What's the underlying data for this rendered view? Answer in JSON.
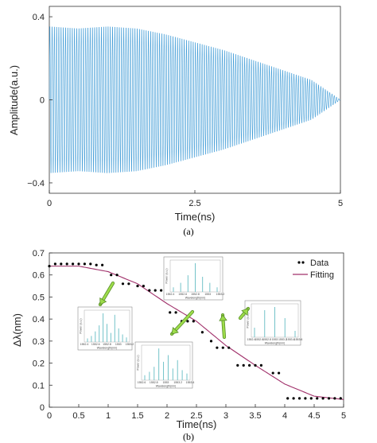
{
  "chart_data": [
    {
      "panel": "(a)",
      "type": "line",
      "title": "",
      "xlabel": "Time(ns)",
      "ylabel": "Amplitude(a.u.)",
      "xlim": [
        0,
        5
      ],
      "ylim": [
        -0.45,
        0.45
      ],
      "x_ticks": [
        "0",
        "2.5",
        "5"
      ],
      "y_ticks": [
        "-0.4",
        "0",
        "0.4"
      ],
      "grid": false,
      "line_color": "#3d9ad6",
      "series": [
        {
          "signal": "decaying oscillation",
          "cycles": 130,
          "envelope": {
            "x": [
              0,
              0.5,
              1.0,
              1.5,
              2.0,
              2.5,
              3.0,
              3.5,
              4.0,
              4.5,
              5.0
            ],
            "y": [
              0.37,
              0.36,
              0.37,
              0.36,
              0.33,
              0.29,
              0.25,
              0.2,
              0.15,
              0.1,
              0.0
            ]
          }
        }
      ]
    },
    {
      "panel": "(b)",
      "type": "scatter",
      "title": "",
      "xlabel": "Time(ns)",
      "ylabel": "Δλ(nm)",
      "xlim": [
        0,
        5
      ],
      "ylim": [
        0,
        0.7
      ],
      "x_ticks": [
        "0",
        "0.5",
        "1",
        "1.5",
        "2",
        "2.5",
        "3",
        "3.5",
        "4",
        "4.5",
        "5"
      ],
      "y_ticks": [
        "0",
        "0.1",
        "0.2",
        "0.3",
        "0.4",
        "0.5",
        "0.6",
        "0.7"
      ],
      "grid": false,
      "legend": {
        "placement": "top-right",
        "entries": [
          "Data",
          "Fitting"
        ]
      },
      "series": [
        {
          "name": "Data",
          "style": "dots",
          "color": "#000000",
          "x": [
            0.0,
            0.1,
            0.2,
            0.3,
            0.4,
            0.5,
            0.6,
            0.7,
            0.8,
            0.9,
            1.05,
            1.15,
            1.25,
            1.35,
            1.5,
            1.6,
            1.7,
            1.8,
            1.9,
            2.05,
            2.15,
            2.25,
            2.35,
            2.45,
            2.6,
            2.75,
            2.85,
            2.95,
            3.05,
            3.2,
            3.3,
            3.4,
            3.5,
            3.6,
            3.8,
            3.9,
            4.05,
            4.15,
            4.25,
            4.35,
            4.45,
            4.55,
            4.65,
            4.75,
            4.85,
            4.95
          ],
          "y": [
            0.64,
            0.65,
            0.65,
            0.65,
            0.65,
            0.65,
            0.65,
            0.65,
            0.645,
            0.645,
            0.6,
            0.6,
            0.56,
            0.56,
            0.55,
            0.55,
            0.53,
            0.53,
            0.53,
            0.43,
            0.43,
            0.39,
            0.39,
            0.39,
            0.34,
            0.3,
            0.27,
            0.27,
            0.27,
            0.19,
            0.19,
            0.19,
            0.19,
            0.19,
            0.155,
            0.155,
            0.04,
            0.04,
            0.04,
            0.04,
            0.04,
            0.04,
            0.04,
            0.04,
            0.04,
            0.04
          ]
        },
        {
          "name": "Fitting",
          "style": "line",
          "color": "#a0306a",
          "x": [
            0,
            0.5,
            1.0,
            1.5,
            2.0,
            2.5,
            3.0,
            3.5,
            4.0,
            4.5,
            5.0
          ],
          "y": [
            0.64,
            0.64,
            0.615,
            0.56,
            0.47,
            0.39,
            0.28,
            0.19,
            0.105,
            0.05,
            0.035
          ]
        }
      ],
      "insets": [
        {
          "xlabel": "Wavelength(nm)",
          "ylabel": "Power (a.u.)",
          "x_ticks": [
            "1552.4",
            "1552.6",
            "1552.8",
            "1553",
            "1553.2"
          ],
          "color": "#73c3c9",
          "peaks": [
            0.12,
            0.2,
            0.35,
            0.55,
            0.95,
            0.6,
            0.3,
            0.9,
            0.45,
            0.25,
            0.15
          ]
        },
        {
          "xlabel": "Wavelength(nm)",
          "ylabel": "Power (a.u.)",
          "x_ticks": [
            "1552.6",
            "1552.8",
            "1553",
            "1553.2",
            "1553.4"
          ],
          "color": "#73c3c9",
          "peaks": [
            0.15,
            0.25,
            0.4,
            0.95,
            0.55,
            0.75,
            0.35,
            0.6,
            0.3,
            0.2
          ]
        },
        {
          "xlabel": "Wavelength(nm)",
          "ylabel": "Power (a.u.)",
          "x_ticks": [
            "1552.4",
            "1552.6",
            "1552.8",
            "1553",
            "1553.2"
          ],
          "color": "#73c3c9",
          "peaks": [
            0.15,
            0.3,
            0.55,
            0.95,
            0.5,
            0.3,
            0.15
          ]
        },
        {
          "xlabel": "Wavelength(nm)",
          "ylabel": "Power (a.u.)",
          "x_ticks": [
            "1552.4",
            "1552.6",
            "1552.8",
            "1553",
            "1553.2",
            "1553.4",
            "1553.6"
          ],
          "color": "#73c3c9",
          "peaks": [
            0.3,
            0.85,
            0.95,
            0.6,
            0.2
          ]
        }
      ]
    }
  ],
  "captions": {
    "a": "(a)",
    "b": "(b)"
  }
}
